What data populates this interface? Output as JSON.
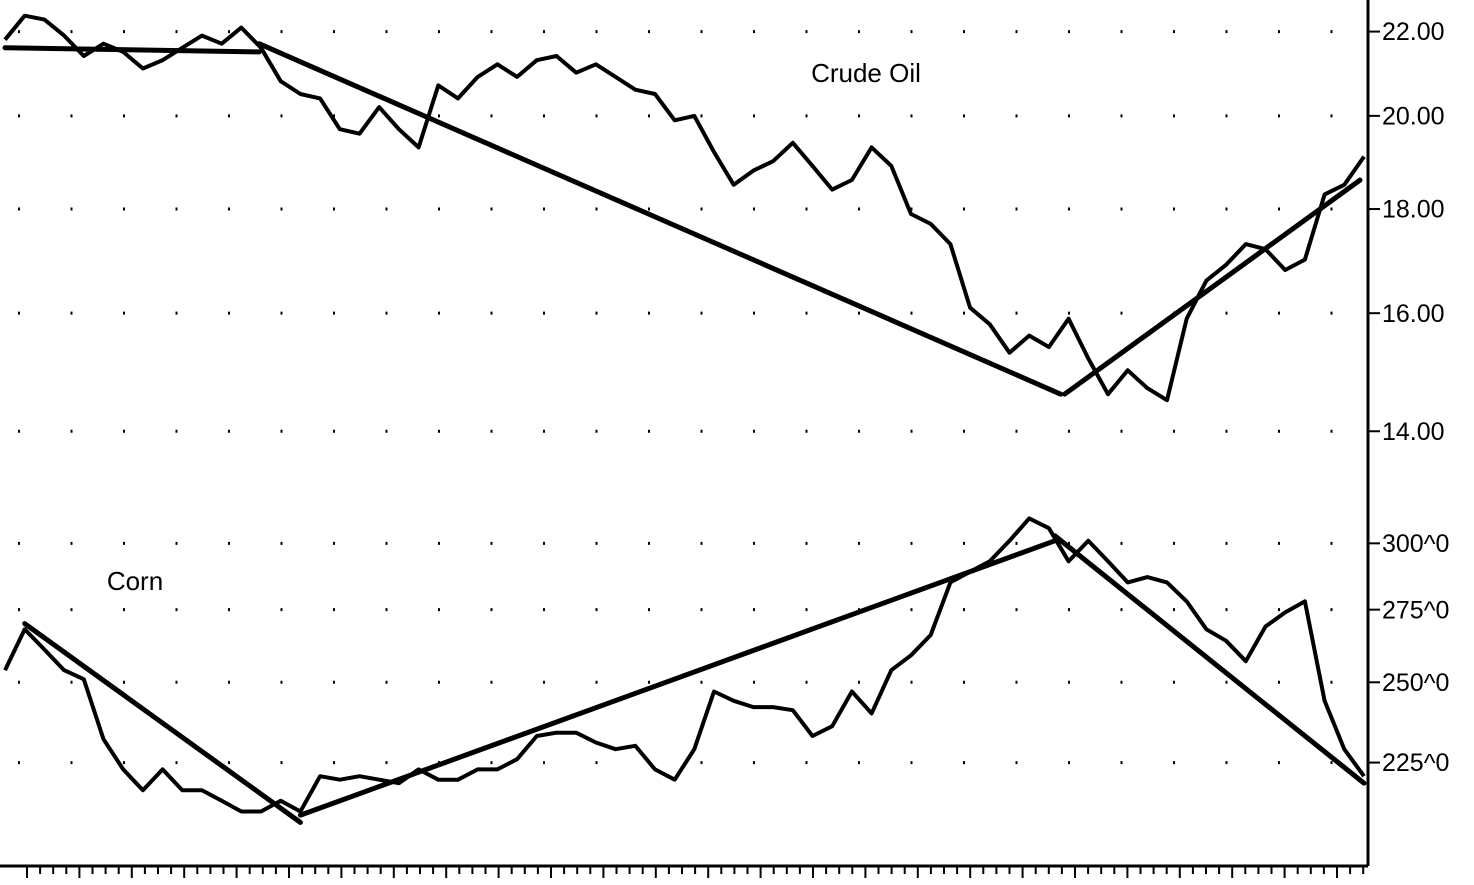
{
  "chart_data": [
    {
      "type": "line",
      "title": "Crude Oil",
      "log_scale": true,
      "grid": true,
      "xlim": [
        0,
        69
      ],
      "ylim": [
        13.4,
        22.8
      ],
      "yticks": [
        {
          "value": 22,
          "label": "22.00"
        },
        {
          "value": 20,
          "label": "20.00"
        },
        {
          "value": 18,
          "label": "18.00"
        },
        {
          "value": 16,
          "label": "16.00"
        },
        {
          "value": 14,
          "label": "14.00"
        }
      ],
      "series": [
        {
          "color": "#000000",
          "values": [
            21.8,
            22.4,
            22.3,
            21.9,
            21.4,
            21.7,
            21.5,
            21.1,
            21.3,
            21.6,
            21.9,
            21.7,
            22.1,
            21.6,
            20.8,
            20.5,
            20.4,
            19.7,
            19.6,
            20.2,
            19.7,
            19.3,
            20.7,
            20.4,
            20.9,
            21.2,
            20.9,
            21.3,
            21.4,
            21.0,
            21.2,
            20.9,
            20.6,
            20.5,
            19.9,
            20.0,
            19.2,
            18.5,
            18.8,
            19.0,
            19.4,
            18.9,
            18.4,
            18.6,
            19.3,
            18.9,
            17.9,
            17.7,
            17.3,
            16.1,
            15.8,
            15.3,
            15.6,
            15.4,
            15.9,
            15.2,
            14.6,
            15.0,
            14.7,
            14.5,
            15.9,
            16.6,
            16.9,
            17.3,
            17.2,
            16.8,
            17.0,
            18.3,
            18.5,
            19.1
          ]
        }
      ],
      "trendlines": [
        {
          "color": "#000000",
          "x": [
            0,
            12.9
          ],
          "y": [
            21.6,
            21.5
          ]
        },
        {
          "color": "#000000",
          "x": [
            12.9,
            53.6
          ],
          "y": [
            21.7,
            14.6
          ]
        },
        {
          "color": "#000000",
          "x": [
            53.8,
            68.8
          ],
          "y": [
            14.6,
            18.6
          ]
        }
      ]
    },
    {
      "type": "line",
      "title": "Corn",
      "log_scale": true,
      "grid": true,
      "xlim": [
        0,
        69
      ],
      "ylim": [
        198,
        326
      ],
      "yticks": [
        {
          "value": 300,
          "label": "300^0"
        },
        {
          "value": 275,
          "label": "275^0"
        },
        {
          "value": 250,
          "label": "250^0"
        },
        {
          "value": 225,
          "label": "225^0"
        }
      ],
      "series": [
        {
          "color": "#000000",
          "values": [
            254,
            268,
            261,
            254,
            251,
            232,
            223,
            217,
            223,
            217,
            217,
            214,
            211,
            211,
            214,
            211,
            221,
            220,
            221,
            220,
            219,
            223,
            220,
            220,
            223,
            223,
            226,
            233,
            234,
            234,
            231,
            229,
            230,
            223,
            220,
            229,
            247,
            244,
            242,
            242,
            241,
            233,
            236,
            247,
            240,
            254,
            259,
            266,
            285,
            289,
            293,
            301,
            310,
            306,
            293,
            301,
            293,
            285,
            287,
            285,
            278,
            268,
            264,
            257,
            269,
            274,
            278,
            244,
            229,
            221
          ]
        }
      ],
      "trendlines": [
        {
          "color": "#000000",
          "x": [
            1.0,
            15.0
          ],
          "y": [
            270,
            208
          ]
        },
        {
          "color": "#000000",
          "x": [
            15.0,
            53.3
          ],
          "y": [
            210,
            301
          ]
        },
        {
          "color": "#000000",
          "x": [
            53.3,
            69
          ],
          "y": [
            303,
            219
          ]
        }
      ]
    }
  ]
}
